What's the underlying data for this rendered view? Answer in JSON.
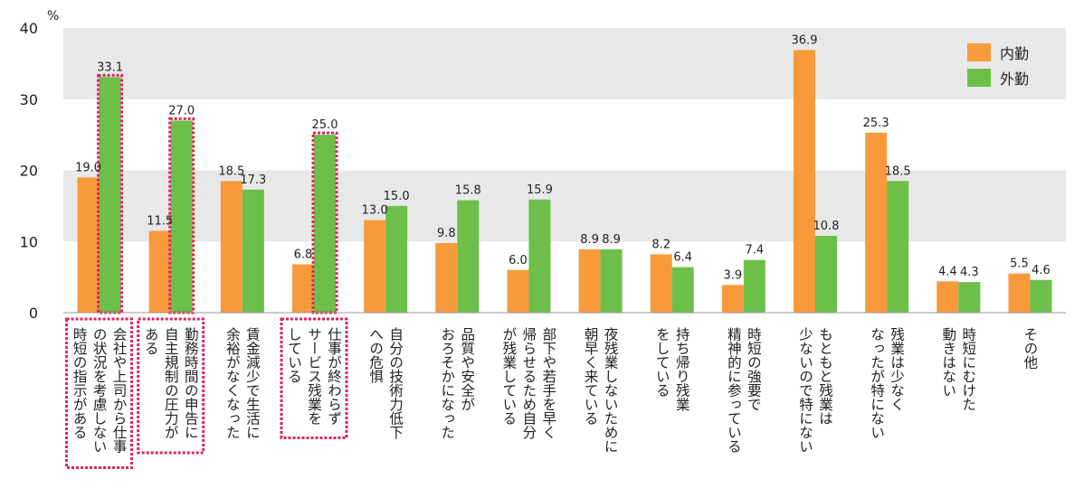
{
  "chart_data": {
    "type": "bar",
    "unit": "%",
    "ylim": [
      0,
      40
    ],
    "yticks": [
      "0",
      "10",
      "20",
      "30",
      "40"
    ],
    "legend_position": "top-right",
    "series": [
      {
        "name": "内勤",
        "color": "#f79a3c",
        "values": [
          19.0,
          11.5,
          18.5,
          6.8,
          13.0,
          9.8,
          6.0,
          8.9,
          8.2,
          3.9,
          36.9,
          25.3,
          4.4,
          5.5
        ],
        "labels": [
          "19.0",
          "11.5",
          "18.5",
          "6.8",
          "13.0",
          "9.8",
          "6.0",
          "8.9",
          "8.2",
          "3.9",
          "36.9",
          "25.3",
          "4.4",
          "5.5"
        ]
      },
      {
        "name": "外勤",
        "color": "#6cc04a",
        "values": [
          33.1,
          27.0,
          17.3,
          25.0,
          15.0,
          15.8,
          15.9,
          8.9,
          6.4,
          7.4,
          10.8,
          18.5,
          4.3,
          4.6
        ],
        "labels": [
          "33.1",
          "27.0",
          "17.3",
          "25.0",
          "15.0",
          "15.8",
          "15.9",
          "8.9",
          "6.4",
          "7.4",
          "10.8",
          "18.5",
          "4.3",
          "4.6"
        ]
      }
    ],
    "categories": [
      [
        "会社や上司から仕事",
        "の状況を考慮しない",
        "時短の指示がある"
      ],
      [
        "勤務時間の申告に",
        "自主規制の圧力が",
        "ある"
      ],
      [
        "賃金減少で生活に",
        "余裕がなくなった"
      ],
      [
        "仕事が終わらず",
        "サービス残業を",
        "している"
      ],
      [
        "自分の技術力低下",
        "への危惧"
      ],
      [
        "品質や安全が",
        "おろそかになった"
      ],
      [
        "部下や若手を早く",
        "帰らせるため自分",
        "が残業している"
      ],
      [
        "夜残業しないために",
        "朝早く来ている"
      ],
      [
        "持ち帰り残業",
        "をしている"
      ],
      [
        "時短の強要で",
        "精神的に参っている"
      ],
      [
        "もともと残業は",
        "少ないので特にない"
      ],
      [
        "残業は少なく",
        "なったが特にない"
      ],
      [
        "時短にむけた",
        "動きはない"
      ],
      [
        "その他"
      ]
    ],
    "highlighted_categories": [
      0,
      1,
      3
    ],
    "colors": {
      "band": "#e8e8e8",
      "highlight": "#e0245e"
    }
  }
}
